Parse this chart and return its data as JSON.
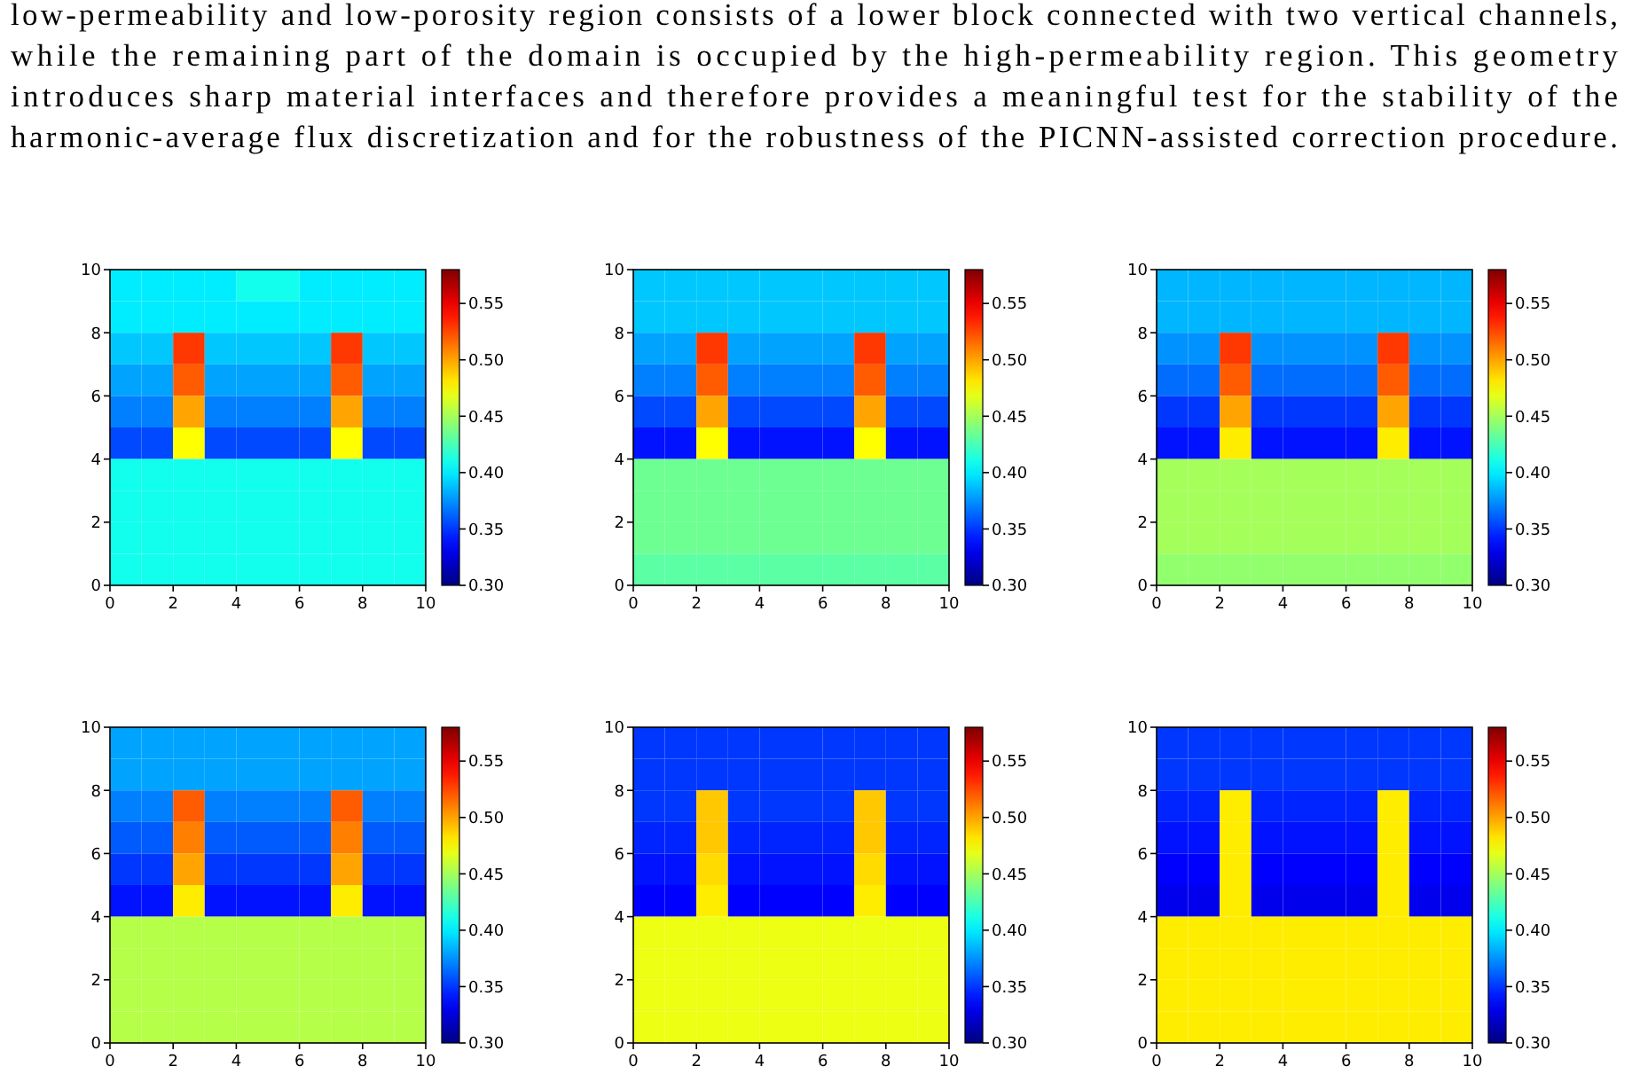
{
  "chart_data": [
    {
      "type": "other",
      "annotations": [
        "low-permeability and low-porosity region consists of a lower block connected with two vertical channels,",
        "while the remaining part of the domain is occupied by the high-permeability region.  This geometry",
        "introduces sharp material interfaces and therefore provides a meaningful test for the stability of the",
        "harmonic-average flux discretization and for the robustness of the PICNN-assisted correction procedure."
      ]
    },
    {
      "type": "heatmap",
      "xlim": [
        0,
        10
      ],
      "xticks": [
        0,
        2,
        4,
        6,
        8,
        10
      ],
      "ylim": [
        0,
        10
      ],
      "yticks": [
        0,
        2,
        4,
        6,
        8,
        10
      ],
      "clim": [
        0.3,
        0.58
      ],
      "cticks": [
        {
          "value": 0.3,
          "label": "0.30"
        },
        0.35,
        {
          "value": 0.4,
          "label": "0.40"
        },
        0.45,
        {
          "value": 0.5,
          "label": "0.50"
        },
        0.55
      ],
      "cells": [
        [
          0.4,
          0.4,
          0.4,
          0.4,
          0.41,
          0.41,
          0.4,
          0.4,
          0.4,
          0.4
        ],
        [
          0.4,
          0.4,
          0.4,
          0.4,
          0.4,
          0.4,
          0.4,
          0.4,
          0.4,
          0.4
        ],
        [
          0.39,
          0.39,
          0.53,
          0.39,
          0.39,
          0.39,
          0.39,
          0.53,
          0.39,
          0.39
        ],
        [
          0.38,
          0.38,
          0.52,
          0.38,
          0.38,
          0.38,
          0.38,
          0.52,
          0.38,
          0.38
        ],
        [
          0.37,
          0.37,
          0.5,
          0.37,
          0.37,
          0.37,
          0.37,
          0.5,
          0.37,
          0.37
        ],
        [
          0.355,
          0.355,
          0.475,
          0.355,
          0.355,
          0.355,
          0.355,
          0.475,
          0.355,
          0.355
        ],
        [
          0.41,
          0.41,
          0.41,
          0.41,
          0.41,
          0.41,
          0.41,
          0.41,
          0.41,
          0.41
        ],
        [
          0.41,
          0.41,
          0.41,
          0.41,
          0.41,
          0.41,
          0.41,
          0.41,
          0.41,
          0.41
        ],
        [
          0.41,
          0.41,
          0.41,
          0.41,
          0.41,
          0.41,
          0.41,
          0.41,
          0.41,
          0.41
        ],
        [
          0.41,
          0.41,
          0.41,
          0.41,
          0.41,
          0.41,
          0.41,
          0.41,
          0.41,
          0.41
        ]
      ]
    },
    {
      "type": "heatmap",
      "xlim": [
        0,
        10
      ],
      "xticks": [
        0,
        2,
        4,
        6,
        8,
        10
      ],
      "ylim": [
        0,
        10
      ],
      "yticks": [
        0,
        2,
        4,
        6,
        8,
        10
      ],
      "clim": [
        0.3,
        0.58
      ],
      "cticks": [
        {
          "value": 0.3,
          "label": "0.30"
        },
        0.35,
        {
          "value": 0.4,
          "label": "0.40"
        },
        0.45,
        {
          "value": 0.5,
          "label": "0.50"
        },
        0.55
      ],
      "cells": [
        [
          0.39,
          0.39,
          0.39,
          0.39,
          0.39,
          0.39,
          0.39,
          0.39,
          0.39,
          0.39
        ],
        [
          0.39,
          0.39,
          0.39,
          0.39,
          0.39,
          0.39,
          0.39,
          0.39,
          0.39,
          0.39
        ],
        [
          0.38,
          0.38,
          0.53,
          0.38,
          0.38,
          0.38,
          0.38,
          0.53,
          0.38,
          0.38
        ],
        [
          0.37,
          0.37,
          0.52,
          0.37,
          0.37,
          0.37,
          0.37,
          0.52,
          0.37,
          0.37
        ],
        [
          0.355,
          0.355,
          0.5,
          0.355,
          0.355,
          0.355,
          0.355,
          0.5,
          0.355,
          0.355
        ],
        [
          0.34,
          0.34,
          0.475,
          0.34,
          0.34,
          0.34,
          0.34,
          0.475,
          0.34,
          0.34
        ],
        [
          0.435,
          0.435,
          0.435,
          0.435,
          0.435,
          0.435,
          0.435,
          0.435,
          0.435,
          0.435
        ],
        [
          0.435,
          0.435,
          0.435,
          0.435,
          0.435,
          0.435,
          0.435,
          0.435,
          0.435,
          0.435
        ],
        [
          0.435,
          0.435,
          0.435,
          0.435,
          0.435,
          0.435,
          0.435,
          0.435,
          0.435,
          0.435
        ],
        [
          0.43,
          0.43,
          0.43,
          0.43,
          0.43,
          0.43,
          0.43,
          0.43,
          0.43,
          0.43
        ]
      ]
    },
    {
      "type": "heatmap",
      "xlim": [
        0,
        10
      ],
      "xticks": [
        0,
        2,
        4,
        6,
        8,
        10
      ],
      "ylim": [
        0,
        10
      ],
      "yticks": [
        0,
        2,
        4,
        6,
        8,
        10
      ],
      "clim": [
        0.3,
        0.58
      ],
      "cticks": [
        {
          "value": 0.3,
          "label": "0.30"
        },
        0.35,
        {
          "value": 0.4,
          "label": "0.40"
        },
        0.45,
        {
          "value": 0.5,
          "label": "0.50"
        },
        0.55
      ],
      "cells": [
        [
          0.385,
          0.385,
          0.385,
          0.385,
          0.385,
          0.385,
          0.385,
          0.385,
          0.385,
          0.385
        ],
        [
          0.385,
          0.385,
          0.385,
          0.385,
          0.385,
          0.385,
          0.385,
          0.385,
          0.385,
          0.385
        ],
        [
          0.375,
          0.375,
          0.53,
          0.375,
          0.375,
          0.375,
          0.375,
          0.53,
          0.375,
          0.375
        ],
        [
          0.365,
          0.365,
          0.52,
          0.365,
          0.365,
          0.365,
          0.365,
          0.52,
          0.365,
          0.365
        ],
        [
          0.35,
          0.35,
          0.5,
          0.35,
          0.35,
          0.35,
          0.35,
          0.5,
          0.35,
          0.35
        ],
        [
          0.34,
          0.34,
          0.48,
          0.34,
          0.34,
          0.34,
          0.34,
          0.48,
          0.34,
          0.34
        ],
        [
          0.45,
          0.45,
          0.45,
          0.45,
          0.45,
          0.45,
          0.45,
          0.45,
          0.45,
          0.45
        ],
        [
          0.45,
          0.45,
          0.45,
          0.45,
          0.45,
          0.45,
          0.45,
          0.45,
          0.45,
          0.45
        ],
        [
          0.45,
          0.45,
          0.45,
          0.45,
          0.45,
          0.45,
          0.45,
          0.45,
          0.45,
          0.45
        ],
        [
          0.445,
          0.445,
          0.445,
          0.445,
          0.445,
          0.445,
          0.445,
          0.445,
          0.445,
          0.445
        ]
      ]
    },
    {
      "type": "heatmap",
      "xlim": [
        0,
        10
      ],
      "xticks": [
        0,
        2,
        4,
        6,
        8,
        10
      ],
      "ylim": [
        0,
        10
      ],
      "yticks": [
        0,
        2,
        4,
        6,
        8,
        10
      ],
      "clim": [
        0.3,
        0.58
      ],
      "cticks": [
        {
          "value": 0.3,
          "label": "0.30"
        },
        0.35,
        {
          "value": 0.4,
          "label": "0.40"
        },
        0.45,
        {
          "value": 0.5,
          "label": "0.50"
        },
        0.55
      ],
      "cells": [
        [
          0.38,
          0.38,
          0.38,
          0.38,
          0.38,
          0.38,
          0.38,
          0.38,
          0.38,
          0.38
        ],
        [
          0.38,
          0.38,
          0.38,
          0.38,
          0.38,
          0.38,
          0.38,
          0.38,
          0.38,
          0.38
        ],
        [
          0.37,
          0.37,
          0.52,
          0.37,
          0.37,
          0.37,
          0.37,
          0.52,
          0.37,
          0.37
        ],
        [
          0.36,
          0.36,
          0.51,
          0.36,
          0.36,
          0.36,
          0.36,
          0.51,
          0.36,
          0.36
        ],
        [
          0.35,
          0.35,
          0.5,
          0.35,
          0.35,
          0.35,
          0.35,
          0.5,
          0.35,
          0.35
        ],
        [
          0.34,
          0.34,
          0.48,
          0.34,
          0.34,
          0.34,
          0.34,
          0.48,
          0.34,
          0.34
        ],
        [
          0.455,
          0.455,
          0.455,
          0.455,
          0.455,
          0.455,
          0.455,
          0.455,
          0.455,
          0.455
        ],
        [
          0.455,
          0.455,
          0.455,
          0.455,
          0.455,
          0.455,
          0.455,
          0.455,
          0.455,
          0.455
        ],
        [
          0.455,
          0.455,
          0.455,
          0.455,
          0.455,
          0.455,
          0.455,
          0.455,
          0.455,
          0.455
        ],
        [
          0.455,
          0.455,
          0.455,
          0.455,
          0.455,
          0.455,
          0.455,
          0.455,
          0.455,
          0.455
        ]
      ]
    },
    {
      "type": "heatmap",
      "xlim": [
        0,
        10
      ],
      "xticks": [
        0,
        2,
        4,
        6,
        8,
        10
      ],
      "ylim": [
        0,
        10
      ],
      "yticks": [
        0,
        2,
        4,
        6,
        8,
        10
      ],
      "clim": [
        0.3,
        0.58
      ],
      "cticks": [
        {
          "value": 0.3,
          "label": "0.30"
        },
        0.35,
        {
          "value": 0.4,
          "label": "0.40"
        },
        0.45,
        {
          "value": 0.5,
          "label": "0.50"
        },
        0.55
      ],
      "cells": [
        [
          0.35,
          0.35,
          0.35,
          0.35,
          0.35,
          0.35,
          0.35,
          0.35,
          0.35,
          0.35
        ],
        [
          0.35,
          0.35,
          0.35,
          0.35,
          0.35,
          0.35,
          0.35,
          0.35,
          0.35,
          0.35
        ],
        [
          0.35,
          0.35,
          0.49,
          0.35,
          0.35,
          0.35,
          0.35,
          0.49,
          0.35,
          0.35
        ],
        [
          0.345,
          0.345,
          0.49,
          0.345,
          0.345,
          0.345,
          0.345,
          0.49,
          0.345,
          0.345
        ],
        [
          0.34,
          0.34,
          0.485,
          0.34,
          0.34,
          0.34,
          0.34,
          0.485,
          0.34,
          0.34
        ],
        [
          0.335,
          0.335,
          0.48,
          0.335,
          0.335,
          0.335,
          0.335,
          0.48,
          0.335,
          0.335
        ],
        [
          0.47,
          0.47,
          0.47,
          0.47,
          0.47,
          0.47,
          0.47,
          0.47,
          0.47,
          0.47
        ],
        [
          0.47,
          0.47,
          0.47,
          0.47,
          0.47,
          0.47,
          0.47,
          0.47,
          0.47,
          0.47
        ],
        [
          0.47,
          0.47,
          0.47,
          0.47,
          0.47,
          0.47,
          0.47,
          0.47,
          0.47,
          0.47
        ],
        [
          0.47,
          0.47,
          0.47,
          0.47,
          0.47,
          0.47,
          0.47,
          0.47,
          0.47,
          0.47
        ]
      ]
    },
    {
      "type": "heatmap",
      "xlim": [
        0,
        10
      ],
      "xticks": [
        0,
        2,
        4,
        6,
        8,
        10
      ],
      "ylim": [
        0,
        10
      ],
      "yticks": [
        0,
        2,
        4,
        6,
        8,
        10
      ],
      "clim": [
        0.3,
        0.58
      ],
      "cticks": [
        {
          "value": 0.3,
          "label": "0.30"
        },
        0.35,
        {
          "value": 0.4,
          "label": "0.40"
        },
        0.45,
        {
          "value": 0.5,
          "label": "0.50"
        },
        0.55
      ],
      "cells": [
        [
          0.35,
          0.35,
          0.35,
          0.35,
          0.35,
          0.35,
          0.35,
          0.35,
          0.35,
          0.35
        ],
        [
          0.35,
          0.35,
          0.35,
          0.35,
          0.35,
          0.35,
          0.35,
          0.35,
          0.35,
          0.35
        ],
        [
          0.345,
          0.345,
          0.48,
          0.345,
          0.345,
          0.345,
          0.345,
          0.48,
          0.345,
          0.345
        ],
        [
          0.34,
          0.34,
          0.48,
          0.34,
          0.34,
          0.34,
          0.34,
          0.48,
          0.34,
          0.34
        ],
        [
          0.335,
          0.335,
          0.48,
          0.335,
          0.335,
          0.335,
          0.335,
          0.48,
          0.335,
          0.335
        ],
        [
          0.33,
          0.33,
          0.48,
          0.33,
          0.33,
          0.33,
          0.33,
          0.48,
          0.33,
          0.33
        ],
        [
          0.48,
          0.48,
          0.48,
          0.48,
          0.48,
          0.48,
          0.48,
          0.48,
          0.48,
          0.48
        ],
        [
          0.48,
          0.48,
          0.48,
          0.48,
          0.48,
          0.48,
          0.48,
          0.48,
          0.48,
          0.48
        ],
        [
          0.48,
          0.48,
          0.48,
          0.48,
          0.48,
          0.48,
          0.48,
          0.48,
          0.48,
          0.48
        ],
        [
          0.48,
          0.48,
          0.48,
          0.48,
          0.48,
          0.48,
          0.48,
          0.48,
          0.48,
          0.48
        ]
      ]
    }
  ]
}
